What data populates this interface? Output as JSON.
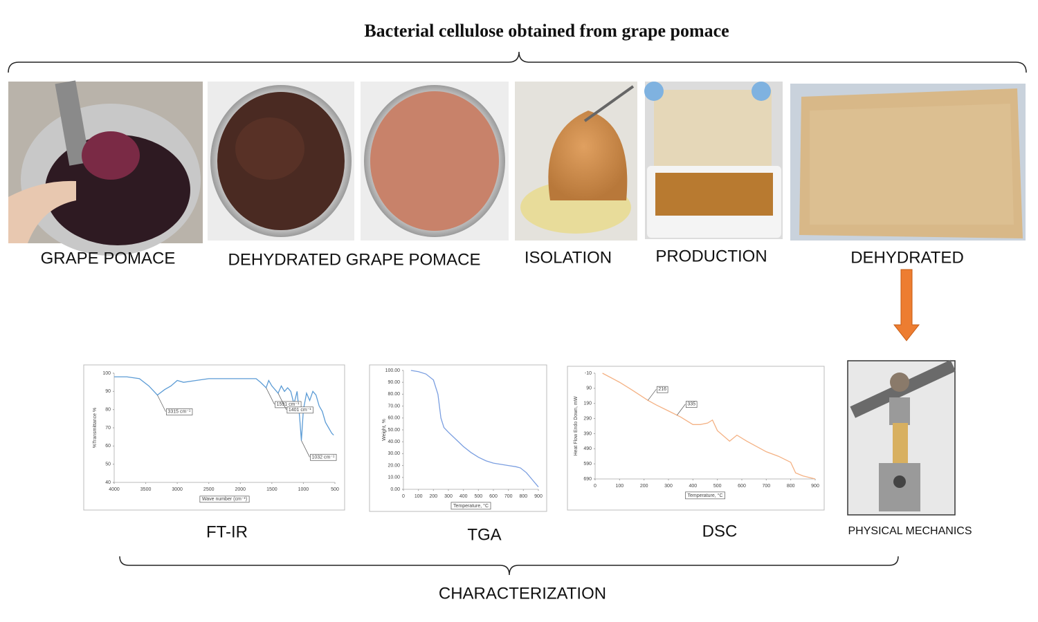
{
  "title": "Bacterial cellulose obtained from grape pomace",
  "process": [
    "GRAPE POMACE",
    "DEHYDRATED GRAPE POMACE",
    "ISOLATION",
    "PRODUCTION",
    "DEHYDRATED"
  ],
  "characterization": {
    "label": "CHARACTERIZATION",
    "items": [
      "FT-IR",
      "TGA",
      "DSC",
      "PHYSICAL MECHANICS"
    ]
  },
  "chart_data": [
    {
      "type": "line",
      "xlabel": "Wave number (cm⁻¹)",
      "ylabel": "%Transmittance %",
      "color": "#5b9bd5",
      "x": [
        4000,
        3800,
        3600,
        3450,
        3315,
        3200,
        3100,
        3000,
        2900,
        2700,
        2500,
        2300,
        2100,
        1900,
        1750,
        1680,
        1591,
        1550,
        1500,
        1450,
        1401,
        1350,
        1300,
        1250,
        1200,
        1150,
        1100,
        1060,
        1032,
        1000,
        950,
        900,
        850,
        800,
        750,
        700,
        650,
        600,
        550,
        520
      ],
      "values": [
        98,
        98,
        97,
        93,
        88,
        91,
        93,
        96,
        95,
        96,
        97,
        97,
        97,
        97,
        97,
        95,
        92,
        96,
        93,
        91,
        89,
        93,
        90,
        92,
        90,
        83,
        90,
        76,
        63,
        80,
        89,
        85,
        90,
        88,
        82,
        79,
        73,
        70,
        67,
        66
      ],
      "xlim": [
        4000,
        500
      ],
      "ylim": [
        40,
        100
      ],
      "xticks": [
        4000,
        3500,
        3000,
        2500,
        2000,
        1500,
        1000,
        500
      ],
      "yticks": [
        40,
        50,
        60,
        70,
        80,
        90,
        100
      ],
      "annotations": [
        {
          "value": 3315,
          "label": "3315 cm⁻¹"
        },
        {
          "value": 1591,
          "label": "1591 cm⁻¹"
        },
        {
          "value": 1401,
          "label": "1401 cm⁻¹"
        },
        {
          "value": 1032,
          "label": "1032 cm⁻¹"
        }
      ]
    },
    {
      "type": "line",
      "xlabel": "Temperature, °C",
      "ylabel": "Weight, %",
      "color": "#7a9ee0",
      "x": [
        50,
        100,
        150,
        200,
        230,
        250,
        270,
        300,
        350,
        400,
        450,
        500,
        550,
        600,
        650,
        700,
        750,
        780,
        820,
        860,
        900
      ],
      "values": [
        100,
        99,
        97,
        92,
        80,
        60,
        52,
        48,
        42,
        36,
        31,
        27,
        24,
        22,
        21,
        20,
        19,
        18,
        14,
        8,
        2
      ],
      "xlim": [
        0,
        900
      ],
      "ylim": [
        0,
        100
      ],
      "xticks": [
        0,
        100,
        200,
        300,
        400,
        500,
        600,
        700,
        800,
        900
      ],
      "yticks": [
        {
          "value": 0,
          "label": "0.00"
        },
        {
          "value": 10,
          "label": "10.00"
        },
        {
          "value": 20,
          "label": "20.00"
        },
        {
          "value": 30,
          "label": "30.00"
        },
        {
          "value": 40,
          "label": "40.00"
        },
        {
          "value": 50,
          "label": "50.00"
        },
        {
          "value": 60,
          "label": "60.00"
        },
        {
          "value": 70,
          "label": "70.00"
        },
        {
          "value": 80,
          "label": "80.00"
        },
        {
          "value": 90,
          "label": "90.00"
        },
        {
          "value": 100,
          "label": "100.00"
        }
      ],
      "annotations": []
    },
    {
      "type": "line",
      "xlabel": "Temperature, °C",
      "ylabel": "Heat Flow Endo Down, mW",
      "color": "#f4b183",
      "x": [
        30,
        100,
        150,
        216,
        250,
        300,
        350,
        400,
        430,
        460,
        480,
        500,
        550,
        580,
        620,
        700,
        750,
        800,
        820,
        850,
        900
      ],
      "values": [
        -10,
        50,
        100,
        170,
        200,
        240,
        280,
        330,
        330,
        320,
        300,
        370,
        440,
        400,
        440,
        510,
        540,
        580,
        650,
        670,
        690
      ],
      "xlim": [
        0,
        900
      ],
      "ylim": [
        690,
        -10
      ],
      "xticks": [
        0,
        100,
        200,
        300,
        400,
        500,
        600,
        700,
        800,
        900
      ],
      "yticks": [
        -10,
        90,
        190,
        290,
        390,
        490,
        590,
        690
      ],
      "annotations": [
        216,
        335
      ]
    }
  ]
}
